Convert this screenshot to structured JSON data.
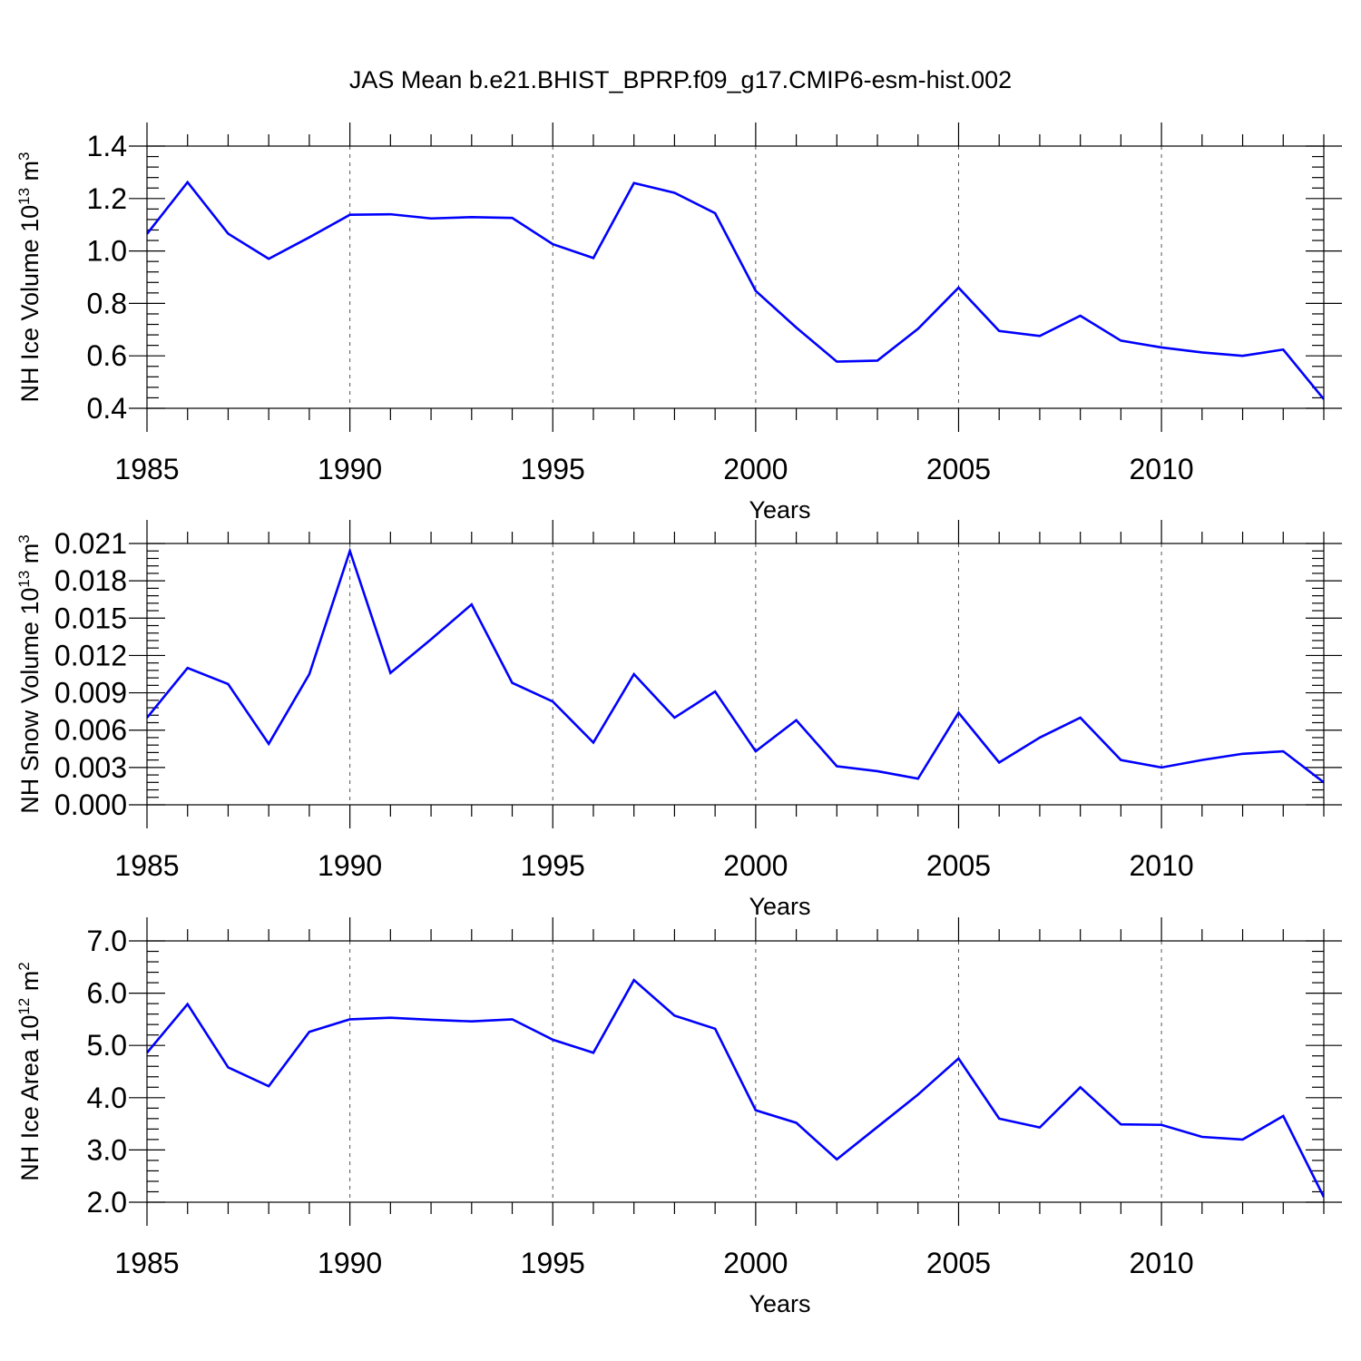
{
  "title": "JAS Mean b.e21.BHIST_BPRP.f09_g17.CMIP6-esm-hist.002",
  "colors": {
    "line": "#0000ff",
    "axis": "#000000"
  },
  "chart_data": [
    {
      "type": "line",
      "title": "JAS Mean b.e21.BHIST_BPRP.f09_g17.CMIP6-esm-hist.002",
      "xlabel": "Years",
      "ylabel": "NH Ice Volume 10",
      "ylabel_exp": "13",
      "ylabel_unit": " m",
      "ylabel_unit_exp": "3",
      "xlim": [
        1985,
        2014
      ],
      "ylim": [
        0.4,
        1.4
      ],
      "grid": "vertical dashed at major x ticks",
      "x_ticks": [
        1985,
        1990,
        1995,
        2000,
        2005,
        2010
      ],
      "x_tick_labels": [
        "1985",
        "1990",
        "1995",
        "2000",
        "2005",
        "2010"
      ],
      "y_ticks": [
        0.4,
        0.6,
        0.8,
        1.0,
        1.2,
        1.4
      ],
      "y_tick_labels": [
        "0.4",
        "0.6",
        "0.8",
        "1.0",
        "1.2",
        "1.4"
      ],
      "y_minor_step": 0.04,
      "series": [
        {
          "name": "NH Ice Volume",
          "color": "#0000ff",
          "x": [
            1985,
            1986,
            1987,
            1988,
            1989,
            1990,
            1991,
            1992,
            1993,
            1994,
            1995,
            1996,
            1997,
            1998,
            1999,
            2000,
            2001,
            2002,
            2003,
            2004,
            2005,
            2006,
            2007,
            2008,
            2009,
            2010,
            2011,
            2012,
            2013,
            2014
          ],
          "values": [
            1.065,
            1.262,
            1.066,
            0.97,
            1.052,
            1.138,
            1.14,
            1.124,
            1.129,
            1.126,
            1.026,
            0.973,
            1.259,
            1.222,
            1.144,
            0.848,
            0.708,
            0.578,
            0.582,
            0.703,
            0.86,
            0.695,
            0.676,
            0.753,
            0.658,
            0.632,
            0.613,
            0.6,
            0.624,
            0.435
          ]
        }
      ]
    },
    {
      "type": "line",
      "xlabel": "Years",
      "ylabel": "NH Snow Volume 10",
      "ylabel_exp": "13",
      "ylabel_unit": " m",
      "ylabel_unit_exp": "3",
      "xlim": [
        1985,
        2014
      ],
      "ylim": [
        0.0,
        0.021
      ],
      "grid": "vertical dashed at major x ticks",
      "x_ticks": [
        1985,
        1990,
        1995,
        2000,
        2005,
        2010
      ],
      "x_tick_labels": [
        "1985",
        "1990",
        "1995",
        "2000",
        "2005",
        "2010"
      ],
      "y_ticks": [
        0.0,
        0.003,
        0.006,
        0.009,
        0.012,
        0.015,
        0.018,
        0.021
      ],
      "y_tick_labels": [
        "0.000",
        "0.003",
        "0.006",
        "0.009",
        "0.012",
        "0.015",
        "0.018",
        "0.021"
      ],
      "y_minor_step": 0.0006,
      "series": [
        {
          "name": "NH Snow Volume",
          "color": "#0000ff",
          "x": [
            1985,
            1986,
            1987,
            1988,
            1989,
            1990,
            1991,
            1992,
            1993,
            1994,
            1995,
            1996,
            1997,
            1998,
            1999,
            2000,
            2001,
            2002,
            2003,
            2004,
            2005,
            2006,
            2007,
            2008,
            2009,
            2010,
            2011,
            2012,
            2013,
            2014
          ],
          "values": [
            0.007,
            0.011,
            0.0097,
            0.0049,
            0.0105,
            0.0204,
            0.0106,
            0.0133,
            0.0161,
            0.0098,
            0.0083,
            0.005,
            0.0105,
            0.007,
            0.0091,
            0.0043,
            0.0068,
            0.0031,
            0.0027,
            0.0021,
            0.0074,
            0.0034,
            0.0054,
            0.007,
            0.0036,
            0.003,
            0.0036,
            0.0041,
            0.0043,
            0.0018
          ]
        }
      ]
    },
    {
      "type": "line",
      "xlabel": "Years",
      "ylabel": "NH Ice Area 10",
      "ylabel_exp": "12",
      "ylabel_unit": " m",
      "ylabel_unit_exp": "2",
      "xlim": [
        1985,
        2014
      ],
      "ylim": [
        2.0,
        7.0
      ],
      "grid": "vertical dashed at major x ticks",
      "x_ticks": [
        1985,
        1990,
        1995,
        2000,
        2005,
        2010
      ],
      "x_tick_labels": [
        "1985",
        "1990",
        "1995",
        "2000",
        "2005",
        "2010"
      ],
      "y_ticks": [
        2.0,
        3.0,
        4.0,
        5.0,
        6.0,
        7.0
      ],
      "y_tick_labels": [
        "2.0",
        "3.0",
        "4.0",
        "5.0",
        "6.0",
        "7.0"
      ],
      "y_minor_step": 0.2,
      "series": [
        {
          "name": "NH Ice Area",
          "color": "#0000ff",
          "x": [
            1985,
            1986,
            1987,
            1988,
            1989,
            1990,
            1991,
            1992,
            1993,
            1994,
            1995,
            1996,
            1997,
            1998,
            1999,
            2000,
            2001,
            2002,
            2003,
            2004,
            2005,
            2006,
            2007,
            2008,
            2009,
            2010,
            2011,
            2012,
            2013,
            2014
          ],
          "values": [
            4.86,
            5.79,
            4.58,
            4.22,
            5.26,
            5.5,
            5.53,
            5.49,
            5.46,
            5.5,
            5.11,
            4.86,
            6.25,
            5.57,
            5.32,
            3.76,
            3.52,
            2.82,
            3.44,
            4.06,
            4.75,
            3.6,
            3.43,
            4.2,
            3.49,
            3.48,
            3.25,
            3.2,
            3.65,
            2.1
          ]
        }
      ]
    }
  ]
}
